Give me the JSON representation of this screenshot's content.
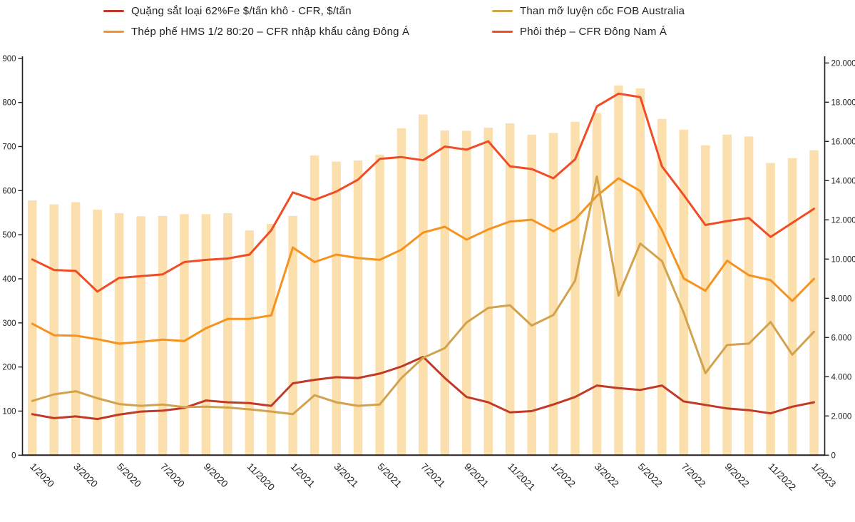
{
  "legend": {
    "items": [
      {
        "label": "Quặng sắt loại 62%Fe $/tấn khô - CFR, $/tấn",
        "color": "#c13a27",
        "series": "quang_sat",
        "col": 0,
        "row": 0
      },
      {
        "label": "Thép phế HMS 1/2 80:20 – CFR nhập khẩu cảng Đông Á",
        "color": "#f6921e",
        "series": "thep_phe",
        "col": 0,
        "row": 1
      },
      {
        "label": "Than mỡ luyện cốc FOB Australia",
        "color": "#d2a24c",
        "series": "than_mo",
        "col": 1,
        "row": 0
      },
      {
        "label": "Phôi thép – CFR Đông Nam Á",
        "color": "#f04c25",
        "series": "phoi_thep",
        "col": 1,
        "row": 1
      }
    ]
  },
  "chart_data": {
    "type": "combo-bar-line",
    "x": [
      "1/2020",
      "2/2020",
      "3/2020",
      "4/2020",
      "5/2020",
      "6/2020",
      "7/2020",
      "8/2020",
      "9/2020",
      "10/2020",
      "11/2020",
      "12/2020",
      "1/2021",
      "2/2021",
      "3/2021",
      "4/2021",
      "5/2021",
      "6/2021",
      "7/2021",
      "8/2021",
      "9/2021",
      "10/2021",
      "11/2021",
      "12/2021",
      "1/2022",
      "2/2022",
      "3/2022",
      "4/2022",
      "5/2022",
      "6/2022",
      "7/2022",
      "8/2022",
      "9/2022",
      "10/2022",
      "11/2022",
      "12/2022",
      "1/2023"
    ],
    "x_tick_labels": [
      "1/2020",
      "3/2020",
      "5/2020",
      "7/2020",
      "9/2020",
      "11/2020",
      "1/2021",
      "3/2021",
      "5/2021",
      "7/2021",
      "9/2021",
      "11/2021",
      "1/2022",
      "3/2022",
      "5/2022",
      "7/2022",
      "9/2022",
      "11/2022",
      "1/2023"
    ],
    "axis_left": {
      "min": 0,
      "max": 900,
      "step": 100,
      "labels": [
        "0",
        "100",
        "200",
        "300",
        "400",
        "500",
        "600",
        "700",
        "800",
        "900"
      ]
    },
    "axis_right": {
      "min": 0,
      "max": 20000,
      "step": 2000,
      "labels": [
        "0",
        "2.000",
        "4.000",
        "6.000",
        "8.000",
        "10.000",
        "12.000",
        "14.000",
        "16.000",
        "18.000",
        "20.000"
      ]
    },
    "bars": {
      "axis": "right",
      "color": "#fbdfac",
      "values": [
        12990,
        12790,
        12900,
        12520,
        12340,
        12180,
        12200,
        12290,
        12290,
        12340,
        11460,
        11800,
        12200,
        15280,
        14970,
        15030,
        15330,
        16670,
        17370,
        16560,
        16540,
        16700,
        16920,
        16340,
        16430,
        17000,
        17450,
        18850,
        18700,
        17150,
        16600,
        15800,
        16350,
        16250,
        14900,
        15150,
        15550
      ]
    },
    "series": [
      {
        "key": "quang_sat",
        "name": "Quặng sắt loại 62%Fe $/tấn khô - CFR, $/tấn",
        "axis": "left",
        "color": "#c13a27",
        "values": [
          93,
          84,
          88,
          82,
          92,
          99,
          101,
          107,
          124,
          120,
          118,
          112,
          163,
          171,
          177,
          175,
          185,
          201,
          223,
          175,
          132,
          120,
          97,
          100,
          115,
          132,
          158,
          152,
          148,
          158,
          122,
          114,
          106,
          102,
          95,
          110,
          120
        ]
      },
      {
        "key": "thep_phe",
        "name": "Thép phế HMS 1/2 80:20 – CFR nhập khẩu cảng Đông Á",
        "axis": "left",
        "color": "#f6921e",
        "values": [
          298,
          272,
          271,
          263,
          253,
          257,
          262,
          259,
          288,
          309,
          309,
          317,
          471,
          438,
          455,
          447,
          443,
          466,
          505,
          518,
          489,
          512,
          530,
          534,
          508,
          535,
          588,
          628,
          599,
          510,
          401,
          373,
          441,
          408,
          397,
          350,
          400
        ]
      },
      {
        "key": "than_mo",
        "name": "Than mỡ luyện cốc FOB Australia",
        "axis": "left",
        "color": "#d2a24c",
        "values": [
          123,
          138,
          145,
          129,
          116,
          112,
          115,
          109,
          110,
          108,
          104,
          99,
          93,
          136,
          120,
          112,
          115,
          175,
          221,
          243,
          301,
          334,
          340,
          294,
          318,
          396,
          632,
          362,
          480,
          440,
          323,
          186,
          250,
          253,
          302,
          228,
          280
        ]
      },
      {
        "key": "phoi_thep",
        "name": "Phôi thép – CFR Đông Nam Á",
        "axis": "left",
        "color": "#f04c25",
        "values": [
          444,
          420,
          418,
          371,
          402,
          406,
          410,
          438,
          443,
          446,
          455,
          510,
          596,
          579,
          598,
          625,
          672,
          676,
          669,
          700,
          693,
          712,
          655,
          649,
          628,
          671,
          791,
          820,
          812,
          655,
          590,
          522,
          531,
          538,
          495,
          527,
          559
        ]
      }
    ],
    "grid": false,
    "legend_position": "top"
  },
  "colors": {
    "axis": "#231f20",
    "text": "#231f20",
    "background": "#ffffff"
  }
}
